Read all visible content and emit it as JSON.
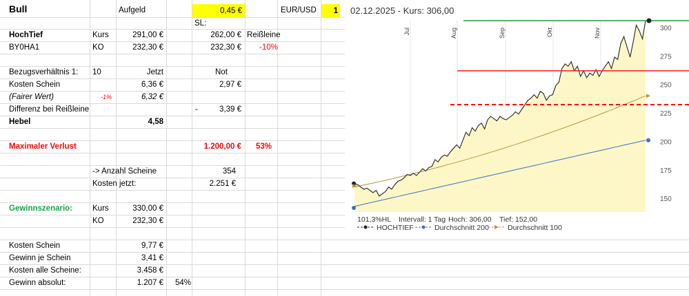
{
  "sheet": {
    "title": "Bull",
    "aufgeld_label": "Aufgeld",
    "aufgeld_value": "0,45 €",
    "fx_label": "EUR/USD",
    "fx_value": "1",
    "sl_label": "SL:",
    "hochtief": "HochTief",
    "kurs_label": "Kurs",
    "kurs_value": "291,00 €",
    "sl_value": "262,00 €",
    "reissleine": "Reißleine",
    "wkn": "BY0HA1",
    "ko_label": "KO",
    "ko_value": "232,30 €",
    "ko_value2": "232,30 €",
    "pct_neg10": "-10%",
    "bezug_label": "Bezugsverhältnis 1:",
    "bezug_value": "10",
    "jetzt": "Jetzt",
    "not": "Not",
    "kosten_schein_label": "Kosten Schein",
    "kosten_schein_jetzt": "6,36 €",
    "kosten_schein_not": "2,97 €",
    "fairer_wert_label": "(Fairer Wert)",
    "fairer_pct": "-1%",
    "fairer_value": "6,32 €",
    "differenz_label": "Differenz bei Reißleine",
    "differenz_dash": "-",
    "differenz_value": "3,39 €",
    "hebel_label": "Hebel",
    "hebel_value": "4,58",
    "max_verlust_label": "Maximaler Verlust",
    "max_verlust_value": "1.200,00 €",
    "max_verlust_pct": "53%",
    "anzahl_label": "-> Anzahl Scheine",
    "anzahl_value": "354",
    "kosten_jetzt_label": "Kosten jetzt:",
    "kosten_jetzt_value": "2.251 €",
    "gewinn_label": "Gewinnszenario:",
    "gz_kurs_label": "Kurs",
    "gz_kurs_value": "330,00 €",
    "gz_ko_label": "KO",
    "gz_ko_value": "232,30 €",
    "ks_label": "Kosten Schein",
    "ks_value": "9,77 €",
    "gjs_label": "Gewinn je Schein",
    "gjs_value": "3,41 €",
    "kas_label": "Kosten alle Scheine:",
    "kas_value": "3.458 €",
    "ga_label": "Gewinn absolut:",
    "ga_value": "1.207 €",
    "ga_pct": "54%"
  },
  "chart_data": {
    "type": "line",
    "title": "02.12.2025  -  Kurs: 306,00",
    "x_tick_labels": [
      "Jul",
      "Aug",
      "Sep",
      "Okt",
      "Nov"
    ],
    "y_tick_labels": [
      "300",
      "275",
      "250",
      "225",
      "200",
      "175",
      "150"
    ],
    "ylim": [
      138,
      306
    ],
    "series": [
      {
        "name": "HOCHTIEF",
        "color": "#333333",
        "values": [
          163,
          162,
          160,
          158,
          159,
          157,
          155,
          157,
          152,
          154,
          156,
          160,
          158,
          162,
          165,
          166,
          168,
          171,
          170,
          172,
          170,
          173,
          176,
          174,
          177,
          178,
          184,
          182,
          186,
          188,
          187,
          191,
          194,
          197,
          194,
          201,
          208,
          205,
          212,
          209,
          214,
          216,
          211,
          219,
          222,
          220,
          218,
          222,
          220,
          219,
          221,
          223,
          226,
          224,
          228,
          232,
          236,
          238,
          241,
          238,
          244,
          242,
          236,
          240,
          241,
          249,
          252,
          264,
          268,
          266,
          270,
          262,
          266,
          257,
          262,
          256,
          260,
          258,
          263,
          257,
          262,
          266,
          270,
          264,
          274,
          272,
          286,
          292,
          283,
          274,
          287,
          302,
          297,
          290,
          306
        ]
      },
      {
        "name": "Durchschnitt 200",
        "color": "#3a6fc4",
        "values": [
          143,
          201
        ]
      },
      {
        "name": "Durchschnitt 100",
        "color": "#b8943a",
        "values": [
          160,
          240
        ]
      }
    ],
    "reference_lines": [
      {
        "value": 306,
        "color": "#1a9a3a",
        "style": "solid"
      },
      {
        "value": 262,
        "color": "#ff2a2a",
        "style": "solid"
      },
      {
        "value": 232.3,
        "color": "#ff0000",
        "style": "dashed"
      }
    ],
    "footer": {
      "hl": "101,3%HL",
      "intervall": "Intervall: 1 Tag",
      "hoch": "Hoch:  306,00",
      "tief": "Tief:  152,00"
    },
    "legend": [
      {
        "label": "HOCHTIEF",
        "color": "#222222"
      },
      {
        "label": "Durchschnitt 200",
        "color": "#3a6fc4"
      },
      {
        "label": "Durchschnitt 100",
        "color": "#b8943a"
      }
    ]
  }
}
